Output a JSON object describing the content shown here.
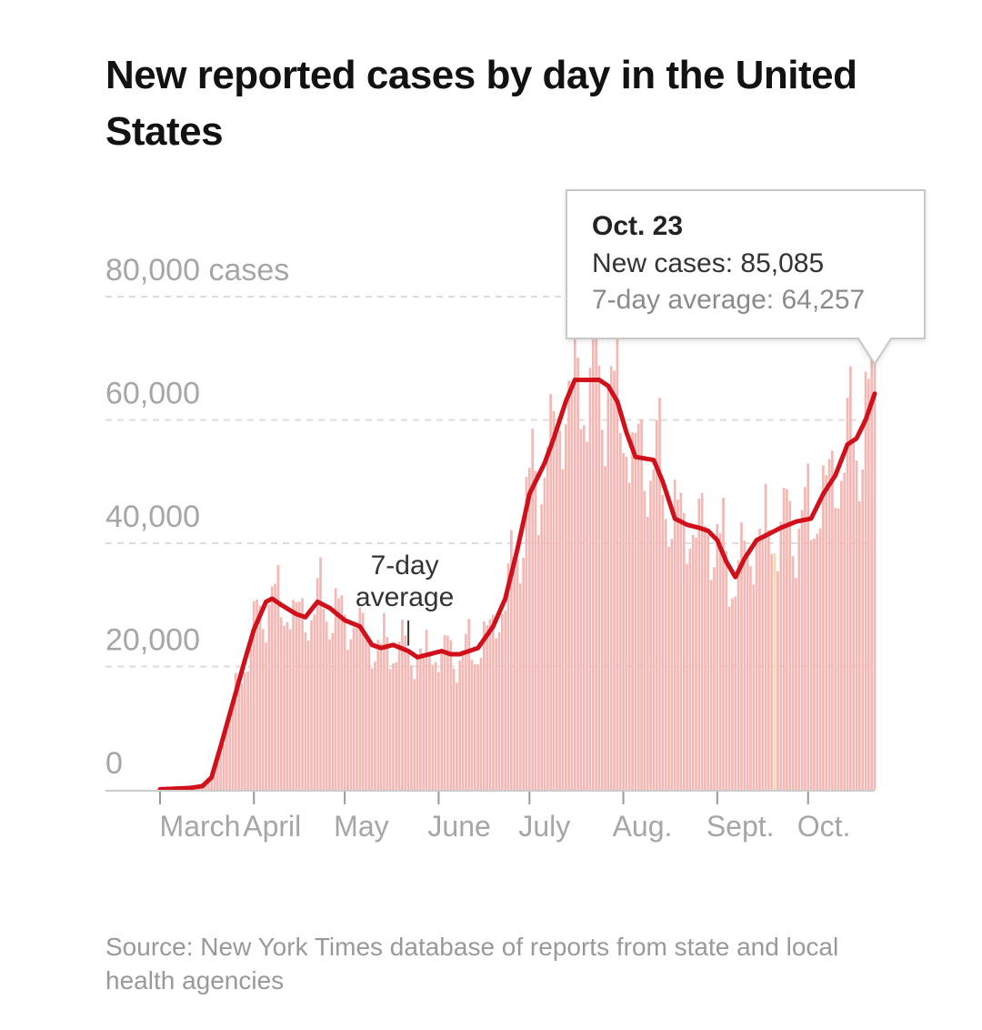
{
  "chart_data": {
    "type": "bar",
    "title": "New reported cases by day in the United States",
    "series": [
      {
        "name": "New cases",
        "kind": "bar",
        "color": "#f4b7b3"
      },
      {
        "name": "7-day average",
        "kind": "line",
        "color": "#d0111b"
      }
    ],
    "y_unit_label": "cases",
    "y_ticks": [
      {
        "value": 80000,
        "label": "80,000 cases"
      },
      {
        "value": 60000,
        "label": "60,000"
      },
      {
        "value": 40000,
        "label": "40,000"
      },
      {
        "value": 20000,
        "label": "20,000"
      },
      {
        "value": 0,
        "label": "0"
      }
    ],
    "ylim": [
      0,
      80000
    ],
    "x_ticks": [
      {
        "day": 0,
        "label": "March"
      },
      {
        "day": 31,
        "label": "April"
      },
      {
        "day": 61,
        "label": "May"
      },
      {
        "day": 92,
        "label": "June"
      },
      {
        "day": 122,
        "label": "July"
      },
      {
        "day": 153,
        "label": "Aug."
      },
      {
        "day": 184,
        "label": "Sept."
      },
      {
        "day": 214,
        "label": "Oct."
      }
    ],
    "x_range_days": [
      0,
      236
    ],
    "avg_keypoints": [
      [
        0,
        80
      ],
      [
        10,
        300
      ],
      [
        14,
        600
      ],
      [
        17,
        2000
      ],
      [
        20,
        7000
      ],
      [
        24,
        14000
      ],
      [
        28,
        21000
      ],
      [
        31,
        26000
      ],
      [
        35,
        30500
      ],
      [
        37,
        31000
      ],
      [
        40,
        30000
      ],
      [
        45,
        28500
      ],
      [
        48,
        28000
      ],
      [
        52,
        30500
      ],
      [
        56,
        29500
      ],
      [
        61,
        27500
      ],
      [
        66,
        26500
      ],
      [
        70,
        23500
      ],
      [
        73,
        23000
      ],
      [
        77,
        23500
      ],
      [
        82,
        22500
      ],
      [
        85,
        21500
      ],
      [
        89,
        22000
      ],
      [
        93,
        22500
      ],
      [
        96,
        22000
      ],
      [
        99,
        22000
      ],
      [
        105,
        23000
      ],
      [
        110,
        26500
      ],
      [
        114,
        31000
      ],
      [
        118,
        39000
      ],
      [
        122,
        48000
      ],
      [
        127,
        53000
      ],
      [
        130,
        57000
      ],
      [
        134,
        63000
      ],
      [
        137,
        66500
      ],
      [
        140,
        66500
      ],
      [
        145,
        66500
      ],
      [
        148,
        65500
      ],
      [
        151,
        63000
      ],
      [
        154,
        58000
      ],
      [
        157,
        54000
      ],
      [
        163,
        53500
      ],
      [
        166,
        50000
      ],
      [
        170,
        44000
      ],
      [
        174,
        43000
      ],
      [
        178,
        42500
      ],
      [
        181,
        42000
      ],
      [
        184,
        40500
      ],
      [
        187,
        37000
      ],
      [
        190,
        34500
      ],
      [
        193,
        37500
      ],
      [
        197,
        40500
      ],
      [
        201,
        41500
      ],
      [
        205,
        42500
      ],
      [
        210,
        43500
      ],
      [
        215,
        44000
      ],
      [
        219,
        48000
      ],
      [
        223,
        51000
      ],
      [
        227,
        56000
      ],
      [
        230,
        57000
      ],
      [
        233,
        60000
      ],
      [
        236,
        64257
      ]
    ],
    "highlighted_bar": {
      "day": 203,
      "color": "#fad8a8"
    },
    "annotations": [
      {
        "text_lines": [
          "7-day",
          "average"
        ],
        "day": 82
      }
    ],
    "tooltip": {
      "date": "Oct. 23",
      "new_cases_text": "New cases: 85,085",
      "avg_text": "7-day average: 64,257",
      "new_cases": 85085,
      "avg": 64257
    }
  },
  "source_text": "Source: New York Times database of reports from state and local health agencies"
}
